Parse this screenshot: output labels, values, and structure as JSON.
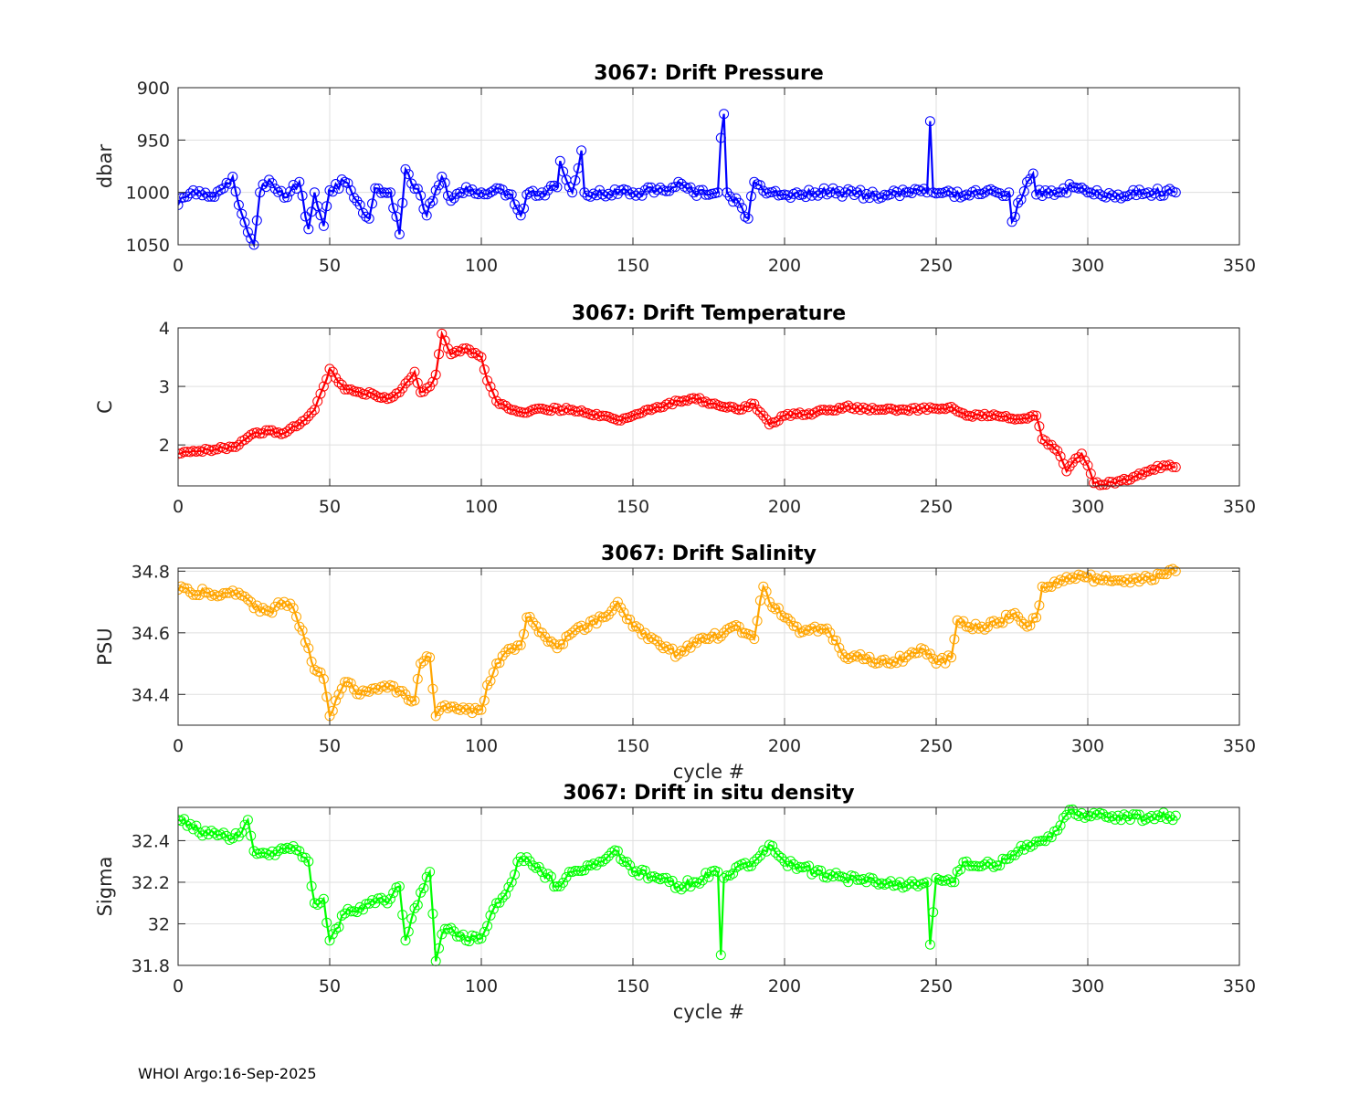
{
  "footer": "WHOI Argo:16-Sep-2025",
  "chart_data": [
    {
      "type": "line",
      "title": "3067: Drift Pressure",
      "xlabel": "",
      "ylabel": "dbar",
      "xlim": [
        0,
        350
      ],
      "ylim": [
        900,
        1050
      ],
      "y_reversed": true,
      "xticks": [
        0,
        50,
        100,
        150,
        200,
        250,
        300,
        350
      ],
      "yticks": [
        900,
        950,
        1000,
        1050
      ],
      "grid": true,
      "color": "#0000ff",
      "marker": "circle",
      "series_anchors": {
        "x": [
          0,
          5,
          10,
          15,
          18,
          20,
          23,
          25,
          27,
          30,
          35,
          40,
          43,
          45,
          48,
          50,
          55,
          60,
          63,
          65,
          70,
          73,
          75,
          80,
          82,
          85,
          87,
          90,
          95,
          100,
          105,
          110,
          113,
          115,
          120,
          125,
          126,
          130,
          133,
          134,
          140,
          150,
          160,
          165,
          170,
          178,
          179,
          180,
          181,
          185,
          188,
          190,
          195,
          200,
          210,
          220,
          230,
          240,
          247,
          248,
          249,
          255,
          260,
          270,
          274,
          275,
          280,
          282,
          283,
          290,
          295,
          300,
          310,
          320,
          329
        ],
        "y": [
          1012,
          998,
          1004,
          996,
          985,
          1012,
          1038,
          1050,
          1000,
          988,
          1005,
          990,
          1035,
          1000,
          1032,
          998,
          990,
          1012,
          1025,
          996,
          1000,
          1040,
          978,
          1003,
          1022,
          998,
          985,
          1008,
          995,
          1000,
          996,
          1002,
          1022,
          1002,
          1000,
          995,
          970,
          1000,
          960,
          1000,
          1002,
          1000,
          998,
          990,
          1000,
          1000,
          948,
          925,
          1000,
          1010,
          1025,
          990,
          1000,
          1002,
          1000,
          1000,
          1003,
          1000,
          1000,
          932,
          1000,
          1000,
          1002,
          1000,
          1000,
          1028,
          990,
          982,
          1002,
          1000,
          995,
          1000,
          1002,
          1000,
          1000
        ]
      }
    },
    {
      "type": "line",
      "title": "3067: Drift Temperature",
      "xlabel": "",
      "ylabel": "C",
      "xlim": [
        0,
        350
      ],
      "ylim": [
        1.3,
        4
      ],
      "xticks": [
        0,
        50,
        100,
        150,
        200,
        250,
        300,
        350
      ],
      "yticks": [
        2,
        3,
        4
      ],
      "grid": true,
      "color": "#ff0000",
      "marker": "circle",
      "series_anchors": {
        "x": [
          0,
          5,
          10,
          15,
          20,
          25,
          30,
          35,
          40,
          45,
          48,
          50,
          55,
          60,
          65,
          70,
          73,
          75,
          78,
          80,
          83,
          85,
          87,
          90,
          95,
          100,
          102,
          105,
          110,
          115,
          120,
          130,
          140,
          145,
          150,
          160,
          165,
          170,
          180,
          185,
          190,
          193,
          195,
          200,
          210,
          215,
          220,
          230,
          240,
          250,
          255,
          260,
          270,
          275,
          280,
          283,
          285,
          290,
          293,
          295,
          298,
          300,
          302,
          305,
          310,
          315,
          320,
          325,
          329
        ],
        "y": [
          1.85,
          1.9,
          1.92,
          1.95,
          2.0,
          2.2,
          2.25,
          2.2,
          2.35,
          2.6,
          3.0,
          3.3,
          2.95,
          2.9,
          2.85,
          2.8,
          2.9,
          3.05,
          3.25,
          2.9,
          3.0,
          3.2,
          3.9,
          3.55,
          3.65,
          3.5,
          3.1,
          2.75,
          2.6,
          2.55,
          2.62,
          2.6,
          2.5,
          2.42,
          2.5,
          2.65,
          2.75,
          2.8,
          2.65,
          2.6,
          2.7,
          2.5,
          2.35,
          2.5,
          2.55,
          2.6,
          2.65,
          2.6,
          2.6,
          2.62,
          2.65,
          2.5,
          2.5,
          2.45,
          2.45,
          2.5,
          2.1,
          1.9,
          1.55,
          1.7,
          1.85,
          1.65,
          1.35,
          1.32,
          1.38,
          1.45,
          1.55,
          1.65,
          1.62
        ]
      }
    },
    {
      "type": "line",
      "title": "3067: Drift Salinity",
      "xlabel": "cycle #",
      "ylabel": "PSU",
      "xlim": [
        0,
        350
      ],
      "ylim": [
        34.3,
        34.81
      ],
      "xticks": [
        0,
        50,
        100,
        150,
        200,
        250,
        300,
        350
      ],
      "yticks": [
        34.4,
        34.6,
        34.8
      ],
      "grid": true,
      "color": "#ffa500",
      "marker": "circle",
      "series_anchors": {
        "x": [
          0,
          10,
          20,
          25,
          30,
          35,
          38,
          40,
          43,
          45,
          48,
          50,
          52,
          55,
          60,
          65,
          70,
          75,
          78,
          80,
          83,
          85,
          87,
          90,
          95,
          100,
          102,
          105,
          110,
          113,
          115,
          120,
          125,
          130,
          140,
          145,
          150,
          155,
          160,
          165,
          170,
          175,
          180,
          185,
          190,
          193,
          195,
          200,
          205,
          210,
          215,
          220,
          225,
          230,
          240,
          245,
          250,
          255,
          257,
          260,
          265,
          270,
          275,
          280,
          283,
          285,
          290,
          295,
          300,
          310,
          320,
          325,
          329
        ],
        "y": [
          34.74,
          34.73,
          34.73,
          34.68,
          34.67,
          34.7,
          34.68,
          34.62,
          34.55,
          34.48,
          34.45,
          34.33,
          34.38,
          34.44,
          34.4,
          34.42,
          34.43,
          34.4,
          34.38,
          34.5,
          34.52,
          34.33,
          34.36,
          34.36,
          34.35,
          34.35,
          34.43,
          34.5,
          34.55,
          34.56,
          34.65,
          34.6,
          34.55,
          34.6,
          34.65,
          34.7,
          34.62,
          34.58,
          34.55,
          34.53,
          34.57,
          34.58,
          34.6,
          34.62,
          34.58,
          34.75,
          34.7,
          34.65,
          34.6,
          34.62,
          34.6,
          34.52,
          34.53,
          34.5,
          34.52,
          34.55,
          34.5,
          34.52,
          34.64,
          34.62,
          34.62,
          34.63,
          34.66,
          34.62,
          34.65,
          34.75,
          34.76,
          34.78,
          34.78,
          34.77,
          34.78,
          34.79,
          34.8
        ]
      }
    },
    {
      "type": "line",
      "title": "3067: Drift in situ density",
      "xlabel": "cycle #",
      "ylabel": "Sigma",
      "xlim": [
        0,
        350
      ],
      "ylim": [
        31.8,
        32.56
      ],
      "xticks": [
        0,
        50,
        100,
        150,
        200,
        250,
        300,
        350
      ],
      "yticks": [
        31.8,
        32,
        32.2,
        32.4
      ],
      "ytick_labels": [
        "31.8",
        "32",
        "32.2",
        "32.4"
      ],
      "grid": true,
      "color": "#00ff00",
      "marker": "circle",
      "series_anchors": {
        "x": [
          0,
          10,
          20,
          23,
          25,
          30,
          35,
          40,
          43,
          45,
          48,
          50,
          55,
          60,
          65,
          70,
          73,
          75,
          80,
          83,
          85,
          87,
          90,
          95,
          100,
          105,
          110,
          113,
          115,
          120,
          125,
          130,
          140,
          145,
          150,
          160,
          165,
          170,
          178,
          179,
          180,
          185,
          190,
          195,
          200,
          210,
          220,
          230,
          240,
          247,
          248,
          250,
          255,
          260,
          270,
          275,
          280,
          285,
          290,
          295,
          300,
          310,
          320,
          329
        ],
        "y": [
          32.5,
          32.43,
          32.42,
          32.5,
          32.35,
          32.33,
          32.36,
          32.35,
          32.3,
          32.1,
          32.12,
          31.92,
          32.05,
          32.08,
          32.1,
          32.12,
          32.18,
          31.92,
          32.15,
          32.25,
          31.82,
          31.95,
          31.98,
          31.92,
          31.93,
          32.1,
          32.2,
          32.32,
          32.32,
          32.25,
          32.18,
          32.25,
          32.3,
          32.35,
          32.25,
          32.22,
          32.18,
          32.2,
          32.25,
          31.85,
          32.22,
          32.28,
          32.3,
          32.38,
          32.3,
          32.25,
          32.22,
          32.2,
          32.18,
          32.2,
          31.9,
          32.22,
          32.2,
          32.3,
          32.28,
          32.33,
          32.38,
          32.4,
          32.45,
          32.55,
          32.52,
          32.52,
          32.51,
          32.52
        ]
      }
    }
  ]
}
